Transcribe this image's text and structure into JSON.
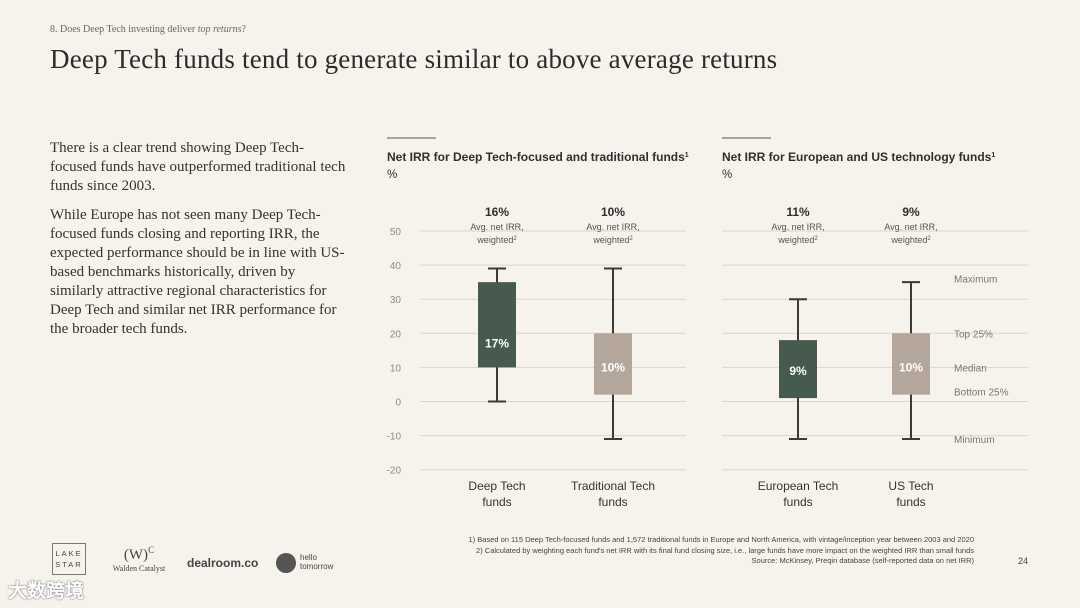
{
  "breadcrumb": {
    "prefix": "8. Does Deep Tech investing deliver ",
    "emphasis": "top returns",
    "suffix": "?"
  },
  "title": "Deep Tech funds tend to generate similar to above average returns",
  "body": {
    "para1": "There is a clear trend showing Deep Tech-focused funds have outperformed traditional tech funds since 2003.",
    "para2": "While Europe has not seen many Deep Tech-focused funds closing and reporting IRR, the expected performance should be in line with US-based benchmarks historically, driven by similarly attractive regional characteristics for Deep Tech and similar net IRR performance for the broader tech funds."
  },
  "colors": {
    "deep_green": "#465a4d",
    "taupe": "#b5a69b",
    "grid": "#dcd6ca"
  },
  "chart_data": [
    {
      "type": "boxplot",
      "title": "Net IRR for Deep Tech-focused and traditional funds",
      "title_sup": "1",
      "unit": "%",
      "ylim": [
        -20,
        50
      ],
      "yticks": [
        50,
        40,
        30,
        20,
        10,
        0,
        -10,
        -20
      ],
      "avg_label": "Avg. net IRR,",
      "avg_label2": "weighted",
      "avg_sup": "2",
      "series": [
        {
          "name": "Deep Tech funds",
          "name_lines": [
            "Deep Tech",
            "funds"
          ],
          "min": 0,
          "q1": 10,
          "median": 17,
          "q3": 35,
          "max": 39,
          "median_label": "17%",
          "avg_irr": "16%",
          "color": "#465a4d"
        },
        {
          "name": "Traditional Tech funds",
          "name_lines": [
            "Traditional Tech",
            "funds"
          ],
          "min": -11,
          "q1": 2,
          "median": 10,
          "q3": 20,
          "max": 39,
          "median_label": "10%",
          "avg_irr": "10%",
          "color": "#b5a69b"
        }
      ]
    },
    {
      "type": "boxplot",
      "title": "Net IRR for European and US technology funds",
      "title_sup": "1",
      "unit": "%",
      "ylim": [
        -20,
        50
      ],
      "avg_label": "Avg. net IRR,",
      "avg_label2": "weighted",
      "avg_sup": "2",
      "legend": {
        "maximum": "Maximum",
        "top25": "Top 25%",
        "median": "Median",
        "bottom25": "Bottom 25%",
        "minimum": "Minimum"
      },
      "series": [
        {
          "name": "European Tech funds",
          "name_lines": [
            "European Tech",
            "funds"
          ],
          "min": -11,
          "q1": 1,
          "median": 9,
          "q3": 18,
          "max": 30,
          "median_label": "9%",
          "avg_irr": "11%",
          "color": "#465a4d"
        },
        {
          "name": "US Tech funds",
          "name_lines": [
            "US Tech",
            "funds"
          ],
          "min": -11,
          "q1": 2,
          "median": 10,
          "q3": 20,
          "max": 35,
          "median_label": "10%",
          "avg_irr": "9%",
          "color": "#b5a69b"
        }
      ]
    }
  ],
  "footnotes": [
    "1) Based on 115 Deep Tech-focused funds and 1,572 traditional funds in Europe and North America, with vintage/inception year between 2003 and 2020",
    "2) Calculated by weighting each fund's net IRR with its final fund closing size, i.e., large funds have more impact on the weighted IRR than small funds",
    "Source: McKinsey, Preqin database (self-reported data on net IRR)"
  ],
  "page_number": "24",
  "logos": {
    "lakestar_line1": "LAKE",
    "lakestar_line2": "STAR",
    "walden_mark": "(W)",
    "walden_sup": "C",
    "walden_name": "Walden Catalyst",
    "dealroom": "dealroom.co",
    "hello_line1": "hello",
    "hello_line2": "tomorrow"
  },
  "watermark": "大数跨境"
}
